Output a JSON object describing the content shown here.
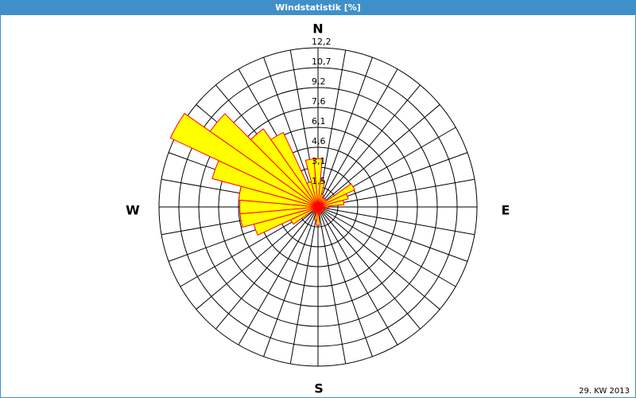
{
  "chart_data": {
    "type": "windrose",
    "title": "Windstatistik [%]",
    "x": [
      0,
      10,
      20,
      30,
      40,
      50,
      60,
      70,
      80,
      90,
      100,
      110,
      120,
      130,
      140,
      150,
      160,
      170,
      180,
      190,
      200,
      210,
      220,
      230,
      240,
      250,
      260,
      270,
      280,
      290,
      300,
      310,
      320,
      330,
      340,
      350
    ],
    "values": [
      3.7,
      2.0,
      1.0,
      0.8,
      0.8,
      0.8,
      3.1,
      2.4,
      2.0,
      0.8,
      0.5,
      0.5,
      0.5,
      0.5,
      0.5,
      0.5,
      0.5,
      0.5,
      1.4,
      1.0,
      0.5,
      0.5,
      0.5,
      0.5,
      2.3,
      5.1,
      6.0,
      6.0,
      6.1,
      8.4,
      12.5,
      10.1,
      7.3,
      6.3,
      2.0,
      3.7
    ],
    "color": "#ffff00",
    "edge_color": "#ff0000",
    "ylim": [
      0,
      12.2
    ],
    "yticks": [
      {
        "value": 1.525,
        "label": "1,5"
      },
      {
        "value": 3.05,
        "label": "3,1"
      },
      {
        "value": 4.575,
        "label": "4,6"
      },
      {
        "value": 6.1,
        "label": "6,1"
      },
      {
        "value": 7.625,
        "label": "7,6"
      },
      {
        "value": 9.15,
        "label": "9,2"
      },
      {
        "value": 10.675,
        "label": "10,7"
      },
      {
        "value": 12.2,
        "label": "12,2"
      }
    ],
    "compass_labels": [
      "N",
      "E",
      "S",
      "W"
    ],
    "footnote": "29. KW 2013",
    "grid": true
  }
}
